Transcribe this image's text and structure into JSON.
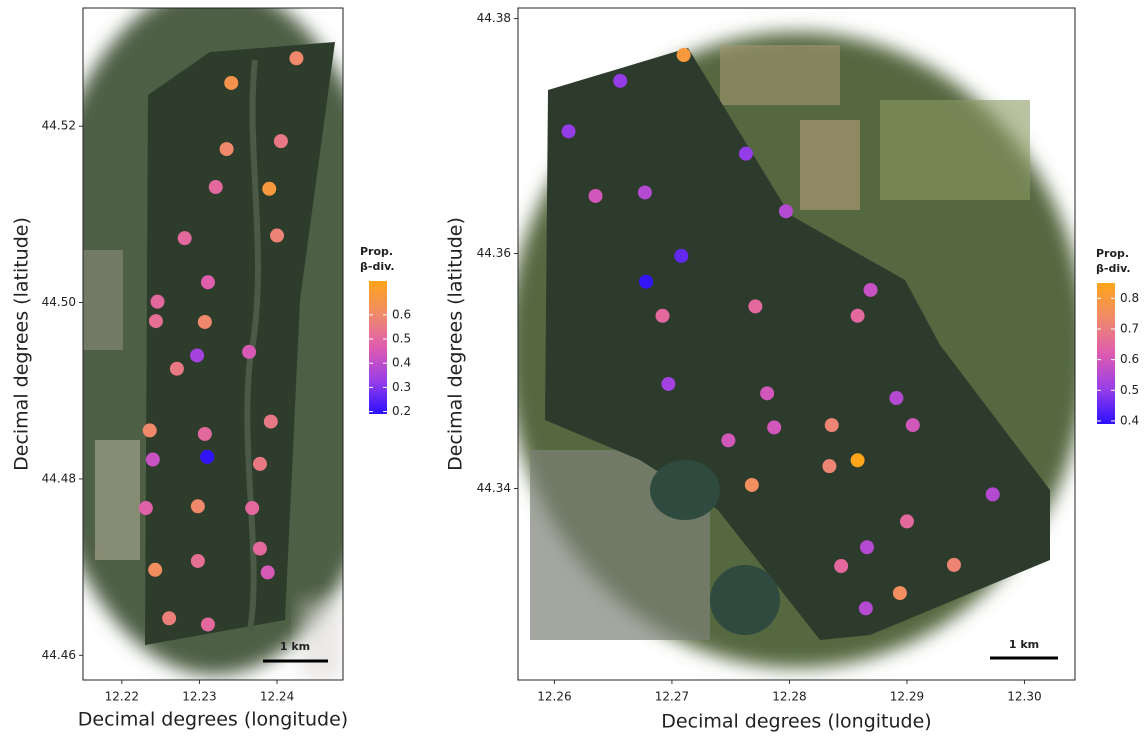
{
  "chart_data": [
    {
      "type": "scatter",
      "xlabel": "Decimal degrees (longitude)",
      "ylabel": "Decimal degrees (latitude)",
      "legend_title": [
        "Prop.",
        "β-div."
      ],
      "scale_bar": "1 km",
      "xlim": [
        12.215,
        12.2485
      ],
      "ylim": [
        44.4572,
        44.5334
      ],
      "xticks": [
        12.22,
        12.23,
        12.24
      ],
      "yticks": [
        44.46,
        44.48,
        {
          "value": 44.5,
          "label": "44.50"
        },
        44.52
      ],
      "clim": [
        0.19,
        0.74
      ],
      "cticks": [
        0.2,
        0.3,
        0.4,
        0.5,
        0.6
      ],
      "colorscale": [
        "#2a10ff",
        "#9a3ee8",
        "#de5cb0",
        "#f08a6a",
        "#ffa51a"
      ],
      "x": [
        12.2425,
        12.2341,
        12.2405,
        12.2335,
        12.2321,
        12.239,
        12.24,
        12.2281,
        12.2311,
        12.2246,
        12.2244,
        12.2307,
        12.2297,
        12.2364,
        12.2271,
        12.2236,
        12.2392,
        12.2307,
        12.224,
        12.231,
        12.2378,
        12.2298,
        12.2231,
        12.2368,
        12.2378,
        12.2298,
        12.2243,
        12.2388,
        12.2261,
        12.2311
      ],
      "values": [
        44.5277,
        44.5249,
        44.5183,
        44.5174,
        44.5131,
        44.5129,
        44.5076,
        44.5073,
        44.5023,
        44.5001,
        44.4979,
        44.4978,
        44.494,
        44.4944,
        44.4925,
        44.4855,
        44.4865,
        44.4851,
        44.4822,
        44.4825,
        44.4817,
        44.4769,
        44.4767,
        44.4767,
        44.4721,
        44.4707,
        44.4697,
        44.4694,
        44.4642,
        44.4635
      ],
      "beta_div": [
        0.6,
        0.65,
        0.55,
        0.6,
        0.5,
        0.68,
        0.58,
        0.5,
        0.47,
        0.5,
        0.52,
        0.6,
        0.35,
        0.45,
        0.55,
        0.6,
        0.55,
        0.5,
        0.42,
        0.2,
        0.55,
        0.6,
        0.48,
        0.5,
        0.5,
        0.52,
        0.62,
        0.45,
        0.57,
        0.5
      ]
    },
    {
      "type": "scatter",
      "xlabel": "Decimal degrees (longitude)",
      "ylabel": "Decimal degrees (latitude)",
      "legend_title": [
        "Prop.",
        "β-div."
      ],
      "scale_bar": "1 km",
      "xlim": [
        12.2569,
        12.3043
      ],
      "ylim": [
        44.3237,
        44.3809
      ],
      "xticks": [
        12.26,
        12.27,
        12.28,
        12.29,
        {
          "value": 12.3,
          "label": "12.30"
        }
      ],
      "yticks": [
        44.34,
        44.36,
        44.38
      ],
      "clim": [
        0.39,
        0.85
      ],
      "cticks": [
        0.4,
        0.5,
        0.6,
        0.7,
        0.8
      ],
      "colorscale": [
        "#2a10ff",
        "#9a3ee8",
        "#de5cb0",
        "#f08a6a",
        "#ffa51a"
      ],
      "x": [
        12.271,
        12.2656,
        12.2612,
        12.2763,
        12.2635,
        12.2677,
        12.2797,
        12.2708,
        12.2678,
        12.2869,
        12.2771,
        12.2692,
        12.2858,
        12.2697,
        12.2781,
        12.2891,
        12.2748,
        12.2787,
        12.2836,
        12.2905,
        12.2834,
        12.2858,
        12.2768,
        12.2973,
        12.29,
        12.2866,
        12.2844,
        12.294,
        12.2894,
        12.2865
      ],
      "values": [
        44.3769,
        44.3747,
        44.3704,
        44.3685,
        44.3649,
        44.3652,
        44.3636,
        44.3598,
        44.3576,
        44.3569,
        44.3555,
        44.3547,
        44.3547,
        44.3489,
        44.3481,
        44.3477,
        44.3441,
        44.3452,
        44.3454,
        44.3454,
        44.3419,
        44.3424,
        44.3403,
        44.3395,
        44.3372,
        44.335,
        44.3334,
        44.3335,
        44.3311,
        44.3298
      ],
      "beta_div": [
        0.8,
        0.5,
        0.5,
        0.5,
        0.6,
        0.55,
        0.55,
        0.45,
        0.4,
        0.58,
        0.65,
        0.65,
        0.65,
        0.52,
        0.6,
        0.55,
        0.6,
        0.6,
        0.72,
        0.6,
        0.72,
        0.85,
        0.75,
        0.55,
        0.65,
        0.55,
        0.65,
        0.72,
        0.75,
        0.55
      ]
    }
  ]
}
